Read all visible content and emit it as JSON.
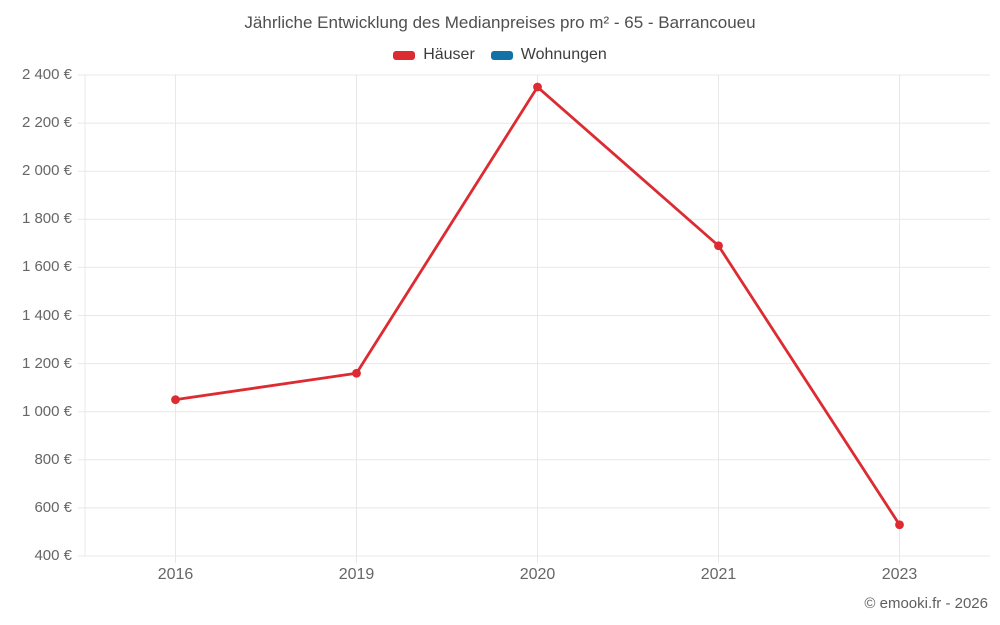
{
  "header": {
    "title": "Jährliche Entwicklung des Medianpreises pro m² - 65 - Barrancoueu"
  },
  "legend": [
    {
      "label": "Häuser",
      "color": "#dd2b32"
    },
    {
      "label": "Wohnungen",
      "color": "#1272a7"
    }
  ],
  "footer": {
    "credit": "© emooki.fr - 2026"
  },
  "colors": {
    "grid": "#e8e8e8",
    "axis_text": "#666666",
    "title_text": "#4f4f4f"
  },
  "chart_data": {
    "type": "line",
    "title": "Jährliche Entwicklung des Medianpreises pro m² - 65 - Barrancoueu",
    "categories": [
      "2016",
      "2019",
      "2020",
      "2021",
      "2023"
    ],
    "series": [
      {
        "name": "Häuser",
        "color": "#dd2b32",
        "values": [
          1050,
          1160,
          2350,
          1690,
          530
        ]
      },
      {
        "name": "Wohnungen",
        "color": "#1272a7",
        "values": []
      }
    ],
    "xlabel": "",
    "ylabel": "",
    "ylim": [
      400,
      2400
    ],
    "y_tick_step": 200,
    "y_tick_labels": [
      "400 €",
      "600 €",
      "800 €",
      "1 000 €",
      "1 200 €",
      "1 400 €",
      "1 600 €",
      "1 800 €",
      "2 000 €",
      "2 200 €",
      "2 400 €"
    ],
    "grid": true,
    "legend_position": "top",
    "marker": "circle"
  }
}
